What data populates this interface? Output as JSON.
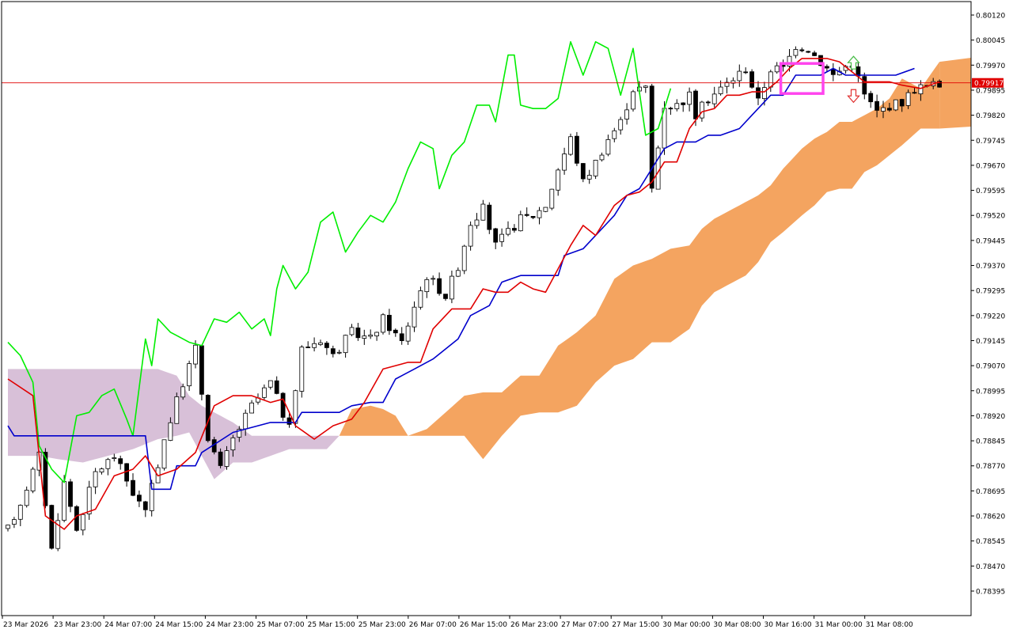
{
  "chart_data": {
    "type": "candlestick",
    "indicator": "Ichimoku Kinko Hyo",
    "y_axis": {
      "ticks": [
        "0.80120",
        "0.80045",
        "0.79970",
        "0.79895",
        "0.79820",
        "0.79745",
        "0.79670",
        "0.79595",
        "0.79520",
        "0.79445",
        "0.79370",
        "0.79295",
        "0.79220",
        "0.79145",
        "0.79070",
        "0.78995",
        "0.78920",
        "0.78845",
        "0.78770",
        "0.78695",
        "0.78620",
        "0.78545",
        "0.78470",
        "0.78395"
      ],
      "range": [
        0.7834,
        0.8016
      ]
    },
    "x_axis": {
      "ticks": [
        "23 Mar 2026",
        "23 Mar 23:00",
        "24 Mar 07:00",
        "24 Mar 15:00",
        "24 Mar 23:00",
        "25 Mar 07:00",
        "25 Mar 15:00",
        "25 Mar 23:00",
        "26 Mar 07:00",
        "26 Mar 15:00",
        "26 Mar 23:00",
        "27 Mar 07:00",
        "27 Mar 15:00",
        "30 Mar 00:00",
        "30 Mar 08:00",
        "30 Mar 16:00",
        "31 Mar 00:00",
        "31 Mar 08:00"
      ],
      "bar_count": 150
    },
    "current_price": {
      "label": "0.79917",
      "value": 0.79917,
      "line_color": "#e00000",
      "tag_color": "#e00000"
    },
    "colors": {
      "bull_body": "#ffffff",
      "bear_body": "#000000",
      "wick": "#000000",
      "tenkan": "#e00000",
      "kijun": "#0000cc",
      "chikou": "#00ee00",
      "kumo_bull": "#f4a460",
      "kumo_bear": "#d8c0d8",
      "highlight_box": "#ff44ee",
      "arrow_up": "#44bb44",
      "arrow_down": "#e03030"
    },
    "candle_anchors": [
      [
        0,
        0.7858
      ],
      [
        2,
        0.7866
      ],
      [
        5,
        0.788
      ],
      [
        7,
        0.7852
      ],
      [
        9,
        0.7872
      ],
      [
        11,
        0.7858
      ],
      [
        14,
        0.7875
      ],
      [
        17,
        0.788
      ],
      [
        20,
        0.7869
      ],
      [
        22,
        0.7863
      ],
      [
        25,
        0.7885
      ],
      [
        28,
        0.7902
      ],
      [
        30,
        0.7912
      ],
      [
        32,
        0.7886
      ],
      [
        34,
        0.7876
      ],
      [
        36,
        0.7885
      ],
      [
        39,
        0.7895
      ],
      [
        42,
        0.7902
      ],
      [
        45,
        0.7888
      ],
      [
        47,
        0.7912
      ],
      [
        50,
        0.7915
      ],
      [
        52,
        0.791
      ],
      [
        55,
        0.7917
      ],
      [
        58,
        0.7915
      ],
      [
        60,
        0.7921
      ],
      [
        63,
        0.7914
      ],
      [
        65,
        0.7925
      ],
      [
        67,
        0.7934
      ],
      [
        70,
        0.7928
      ],
      [
        72,
        0.7937
      ],
      [
        74,
        0.795
      ],
      [
        76,
        0.7954
      ],
      [
        78,
        0.7943
      ],
      [
        80,
        0.7947
      ],
      [
        82,
        0.7951
      ],
      [
        84,
        0.7952
      ],
      [
        86,
        0.7955
      ],
      [
        88,
        0.7966
      ],
      [
        90,
        0.7975
      ],
      [
        92,
        0.7962
      ],
      [
        94,
        0.7968
      ],
      [
        96,
        0.7975
      ],
      [
        98,
        0.798
      ],
      [
        100,
        0.799
      ],
      [
        102,
        0.799
      ],
      [
        103,
        0.796
      ],
      [
        105,
        0.7985
      ],
      [
        107,
        0.7985
      ],
      [
        109,
        0.7988
      ],
      [
        110,
        0.7982
      ],
      [
        112,
        0.7987
      ],
      [
        114,
        0.799
      ],
      [
        116,
        0.7993
      ],
      [
        118,
        0.7996
      ],
      [
        120,
        0.7986
      ],
      [
        122,
        0.7996
      ],
      [
        124,
        0.7996
      ],
      [
        126,
        0.8003
      ],
      [
        128,
        0.8002
      ],
      [
        130,
        0.7998
      ],
      [
        132,
        0.7994
      ],
      [
        135,
        0.7998
      ],
      [
        137,
        0.7988
      ],
      [
        139,
        0.7983
      ],
      [
        141,
        0.7985
      ],
      [
        143,
        0.7986
      ],
      [
        145,
        0.799
      ],
      [
        148,
        0.7991
      ]
    ],
    "tenkan_anchors": [
      [
        0,
        0.7903
      ],
      [
        4,
        0.7898
      ],
      [
        6,
        0.7862
      ],
      [
        9,
        0.7858
      ],
      [
        11,
        0.7862
      ],
      [
        14,
        0.7864
      ],
      [
        17,
        0.7874
      ],
      [
        20,
        0.7876
      ],
      [
        22,
        0.788
      ],
      [
        24,
        0.7874
      ],
      [
        27,
        0.7876
      ],
      [
        30,
        0.7881
      ],
      [
        33,
        0.7895
      ],
      [
        36,
        0.7898
      ],
      [
        39,
        0.7898
      ],
      [
        42,
        0.7896
      ],
      [
        44,
        0.7897
      ],
      [
        46,
        0.7889
      ],
      [
        49,
        0.7885
      ],
      [
        52,
        0.7889
      ],
      [
        55,
        0.7891
      ],
      [
        57,
        0.7896
      ],
      [
        60,
        0.7906
      ],
      [
        64,
        0.7908
      ],
      [
        66,
        0.7908
      ],
      [
        68,
        0.7918
      ],
      [
        71,
        0.7924
      ],
      [
        74,
        0.7924
      ],
      [
        76,
        0.793
      ],
      [
        78,
        0.7929
      ],
      [
        80,
        0.7929
      ],
      [
        82,
        0.7932
      ],
      [
        84,
        0.793
      ],
      [
        86,
        0.7929
      ],
      [
        88,
        0.7936
      ],
      [
        90,
        0.7943
      ],
      [
        92,
        0.7949
      ],
      [
        94,
        0.7946
      ],
      [
        97,
        0.7955
      ],
      [
        99,
        0.7958
      ],
      [
        101,
        0.7959
      ],
      [
        103,
        0.7962
      ],
      [
        105,
        0.7968
      ],
      [
        107,
        0.7968
      ],
      [
        109,
        0.7978
      ],
      [
        111,
        0.7983
      ],
      [
        113,
        0.7984
      ],
      [
        115,
        0.7988
      ],
      [
        117,
        0.7988
      ],
      [
        119,
        0.7989
      ],
      [
        121,
        0.7989
      ],
      [
        123,
        0.7992
      ],
      [
        125,
        0.7996
      ],
      [
        127,
        0.7999
      ],
      [
        129,
        0.7999
      ],
      [
        131,
        0.7999
      ],
      [
        133,
        0.7998
      ],
      [
        135,
        0.7995
      ],
      [
        137,
        0.7992
      ],
      [
        139,
        0.7992
      ],
      [
        141,
        0.7992
      ],
      [
        143,
        0.7991
      ],
      [
        146,
        0.799
      ],
      [
        149,
        0.7992
      ]
    ],
    "kijun_anchors": [
      [
        0,
        0.7889
      ],
      [
        1,
        0.7886
      ],
      [
        22,
        0.7886
      ],
      [
        23,
        0.787
      ],
      [
        26,
        0.787
      ],
      [
        27,
        0.7877
      ],
      [
        30,
        0.7877
      ],
      [
        31,
        0.7881
      ],
      [
        36,
        0.7887
      ],
      [
        42,
        0.789
      ],
      [
        46,
        0.789
      ],
      [
        47,
        0.7893
      ],
      [
        53,
        0.7893
      ],
      [
        55,
        0.7895
      ],
      [
        58,
        0.7896
      ],
      [
        60,
        0.7896
      ],
      [
        62,
        0.7903
      ],
      [
        65,
        0.7906
      ],
      [
        68,
        0.7909
      ],
      [
        72,
        0.7915
      ],
      [
        74,
        0.7922
      ],
      [
        77,
        0.7925
      ],
      [
        79,
        0.7932
      ],
      [
        82,
        0.7934
      ],
      [
        85,
        0.7934
      ],
      [
        88,
        0.7934
      ],
      [
        89,
        0.794
      ],
      [
        92,
        0.7942
      ],
      [
        95,
        0.7948
      ],
      [
        97,
        0.7952
      ],
      [
        99,
        0.7958
      ],
      [
        101,
        0.796
      ],
      [
        103,
        0.7966
      ],
      [
        105,
        0.7972
      ],
      [
        107,
        0.7974
      ],
      [
        110,
        0.7974
      ],
      [
        112,
        0.7976
      ],
      [
        114,
        0.7976
      ],
      [
        117,
        0.7978
      ],
      [
        119,
        0.7982
      ],
      [
        122,
        0.7988
      ],
      [
        124,
        0.7988
      ],
      [
        126,
        0.7994
      ],
      [
        128,
        0.7994
      ],
      [
        130,
        0.7994
      ],
      [
        132,
        0.7996
      ],
      [
        134,
        0.7994
      ],
      [
        136,
        0.7994
      ],
      [
        140,
        0.7994
      ],
      [
        142,
        0.7994
      ],
      [
        145,
        0.7996
      ]
    ],
    "chikou_anchors": [
      [
        0,
        0.7914
      ],
      [
        2,
        0.791
      ],
      [
        4,
        0.7902
      ],
      [
        5,
        0.7883
      ],
      [
        7,
        0.7876
      ],
      [
        9,
        0.7872
      ],
      [
        10,
        0.7882
      ],
      [
        11,
        0.7892
      ],
      [
        13,
        0.7893
      ],
      [
        15,
        0.7898
      ],
      [
        17,
        0.79
      ],
      [
        19,
        0.7891
      ],
      [
        20,
        0.7886
      ],
      [
        22,
        0.7915
      ],
      [
        23,
        0.7907
      ],
      [
        24,
        0.7921
      ],
      [
        26,
        0.7917
      ],
      [
        27,
        0.7916
      ],
      [
        29,
        0.7914
      ],
      [
        31,
        0.7913
      ],
      [
        33,
        0.7921
      ],
      [
        35,
        0.792
      ],
      [
        37,
        0.7923
      ],
      [
        39,
        0.7918
      ],
      [
        41,
        0.7921
      ],
      [
        42,
        0.7916
      ],
      [
        43,
        0.793
      ],
      [
        44,
        0.7937
      ],
      [
        46,
        0.793
      ],
      [
        48,
        0.7935
      ],
      [
        50,
        0.795
      ],
      [
        52,
        0.7953
      ],
      [
        54,
        0.7941
      ],
      [
        56,
        0.7947
      ],
      [
        58,
        0.7952
      ],
      [
        60,
        0.795
      ],
      [
        62,
        0.7956
      ],
      [
        64,
        0.7966
      ],
      [
        66,
        0.7974
      ],
      [
        68,
        0.7972
      ],
      [
        69,
        0.796
      ],
      [
        71,
        0.797
      ],
      [
        73,
        0.7974
      ],
      [
        75,
        0.7985
      ],
      [
        77,
        0.7985
      ],
      [
        78,
        0.798
      ],
      [
        80,
        0.8
      ],
      [
        81,
        0.8
      ],
      [
        82,
        0.7985
      ],
      [
        84,
        0.7984
      ],
      [
        86,
        0.7984
      ],
      [
        88,
        0.7987
      ],
      [
        90,
        0.8004
      ],
      [
        92,
        0.7994
      ],
      [
        94,
        0.8004
      ],
      [
        96,
        0.8002
      ],
      [
        98,
        0.7988
      ],
      [
        100,
        0.8002
      ],
      [
        102,
        0.7976
      ],
      [
        104,
        0.7978
      ],
      [
        106,
        0.799
      ]
    ],
    "kumo_anchors": [
      [
        0,
        0.788,
        0.7906
      ],
      [
        5,
        0.788,
        0.7906
      ],
      [
        8,
        0.7879,
        0.7906
      ],
      [
        12,
        0.7878,
        0.7906
      ],
      [
        16,
        0.788,
        0.7906
      ],
      [
        20,
        0.7882,
        0.7906
      ],
      [
        24,
        0.7885,
        0.7906
      ],
      [
        27,
        0.7886,
        0.7904
      ],
      [
        29,
        0.7887,
        0.7898
      ],
      [
        31,
        0.788,
        0.7895
      ],
      [
        33,
        0.7873,
        0.7893
      ],
      [
        36,
        0.7878,
        0.789
      ],
      [
        39,
        0.7878,
        0.7886
      ],
      [
        42,
        0.788,
        0.7886
      ],
      [
        45,
        0.7882,
        0.7886
      ],
      [
        48,
        0.7882,
        0.7886
      ],
      [
        51,
        0.7882,
        0.7886
      ],
      [
        53,
        0.7886,
        0.7886
      ],
      [
        55,
        0.7886,
        0.7894
      ],
      [
        58,
        0.7886,
        0.7895
      ],
      [
        60,
        0.7886,
        0.7894
      ],
      [
        62,
        0.7886,
        0.7892
      ],
      [
        64,
        0.7886,
        0.7886
      ],
      [
        67,
        0.7886,
        0.7888
      ],
      [
        70,
        0.7886,
        0.7893
      ],
      [
        73,
        0.7886,
        0.7898
      ],
      [
        76,
        0.7879,
        0.7899
      ],
      [
        79,
        0.7886,
        0.7899
      ],
      [
        82,
        0.7892,
        0.7904
      ],
      [
        85,
        0.7893,
        0.7904
      ],
      [
        88,
        0.7893,
        0.7913
      ],
      [
        91,
        0.7895,
        0.7917
      ],
      [
        94,
        0.7902,
        0.7922
      ],
      [
        97,
        0.7907,
        0.7933
      ],
      [
        100,
        0.7909,
        0.7937
      ],
      [
        103,
        0.7914,
        0.7939
      ],
      [
        106,
        0.7914,
        0.7942
      ],
      [
        109,
        0.7918,
        0.7943
      ],
      [
        111,
        0.7925,
        0.7948
      ],
      [
        113,
        0.7929,
        0.7951
      ],
      [
        116,
        0.7932,
        0.7954
      ],
      [
        118,
        0.7934,
        0.7956
      ],
      [
        120,
        0.7938,
        0.7958
      ],
      [
        122,
        0.7944,
        0.7961
      ],
      [
        124,
        0.7947,
        0.7966
      ],
      [
        127,
        0.7952,
        0.7972
      ],
      [
        129,
        0.7955,
        0.7975
      ],
      [
        131,
        0.7959,
        0.7977
      ],
      [
        133,
        0.796,
        0.798
      ],
      [
        135,
        0.796,
        0.798
      ],
      [
        137,
        0.7965,
        0.7982
      ],
      [
        139,
        0.7967,
        0.7984
      ],
      [
        141,
        0.797,
        0.7987
      ],
      [
        143,
        0.7973,
        0.7993
      ],
      [
        146,
        0.7978,
        0.799
      ],
      [
        149,
        0.7978,
        0.7998
      ]
    ],
    "kumo_color_change_bar": 53,
    "highlight_box": {
      "bar_start": 124,
      "bar_end": 130,
      "price_top": 0.79975,
      "price_bottom": 0.79885
    },
    "signals": {
      "up_arrow_bar": 135,
      "down_arrow_bar": 135,
      "up_price": 0.79975,
      "down_price": 0.7988
    }
  }
}
